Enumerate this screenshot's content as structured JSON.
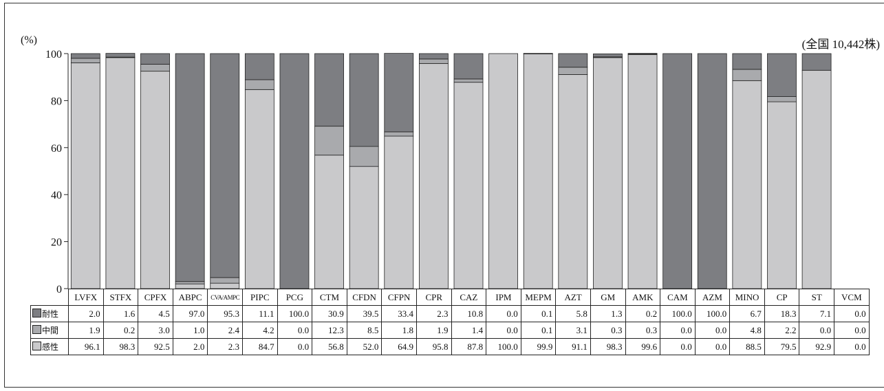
{
  "unit_label": "(%)",
  "total_label": "(全国 10,442株)",
  "colors": {
    "resistant": "#7d7e82",
    "intermediate": "#a9aaad",
    "susceptible": "#c9c9cb"
  },
  "chart_data": {
    "type": "bar",
    "stacked": true,
    "ylim": [
      0,
      100
    ],
    "yticks": [
      "0",
      "20",
      "40",
      "60",
      "80",
      "100"
    ],
    "categories": [
      "LVFX",
      "STFX",
      "CPFX",
      "ABPC",
      "CVA/AMPC",
      "PIPC",
      "PCG",
      "CTM",
      "CFDN",
      "CFPN",
      "CPR",
      "CAZ",
      "IPM",
      "MEPM",
      "AZT",
      "GM",
      "AMK",
      "CAM",
      "AZM",
      "MINO",
      "CP",
      "ST",
      "VCM"
    ],
    "series": [
      {
        "name": "耐性",
        "color": "#7d7e82",
        "display": [
          "2.0",
          "1.6",
          "4.5",
          "97.0",
          "95.3",
          "11.1",
          "100.0",
          "30.9",
          "39.5",
          "33.4",
          "2.3",
          "10.8",
          "0.0",
          "0.1",
          "5.8",
          "1.3",
          "0.2",
          "100.0",
          "100.0",
          "6.7",
          "18.3",
          "7.1",
          "0.0"
        ],
        "values": [
          2.0,
          1.6,
          4.5,
          97.0,
          95.3,
          11.1,
          100.0,
          30.9,
          39.5,
          33.4,
          2.3,
          10.8,
          0.0,
          0.1,
          5.8,
          1.3,
          0.2,
          100.0,
          100.0,
          6.7,
          18.3,
          7.1,
          0.0
        ]
      },
      {
        "name": "中間",
        "color": "#a9aaad",
        "display": [
          "1.9",
          "0.2",
          "3.0",
          "1.0",
          "2.4",
          "4.2",
          "0.0",
          "12.3",
          "8.5",
          "1.8",
          "1.9",
          "1.4",
          "0.0",
          "0.1",
          "3.1",
          "0.3",
          "0.3",
          "0.0",
          "0.0",
          "4.8",
          "2.2",
          "0.0",
          "0.0"
        ],
        "values": [
          1.9,
          0.2,
          3.0,
          1.0,
          2.4,
          4.2,
          0.0,
          12.3,
          8.5,
          1.8,
          1.9,
          1.4,
          0.0,
          0.1,
          3.1,
          0.3,
          0.3,
          0.0,
          0.0,
          4.8,
          2.2,
          0.0,
          0.0
        ]
      },
      {
        "name": "感性",
        "color": "#c9c9cb",
        "display": [
          "96.1",
          "98.3",
          "92.5",
          "2.0",
          "2.3",
          "84.7",
          "0.0",
          "56.8",
          "52.0",
          "64.9",
          "95.8",
          "87.8",
          "100.0",
          "99.9",
          "91.1",
          "98.3",
          "99.6",
          "0.0",
          "0.0",
          "88.5",
          "79.5",
          "92.9",
          "0.0"
        ],
        "values": [
          96.1,
          98.3,
          92.5,
          2.0,
          2.3,
          84.7,
          0.0,
          56.8,
          52.0,
          64.9,
          95.8,
          87.8,
          100.0,
          99.9,
          91.1,
          98.3,
          99.6,
          0.0,
          0.0,
          88.5,
          79.5,
          92.9,
          0.0
        ]
      }
    ]
  }
}
